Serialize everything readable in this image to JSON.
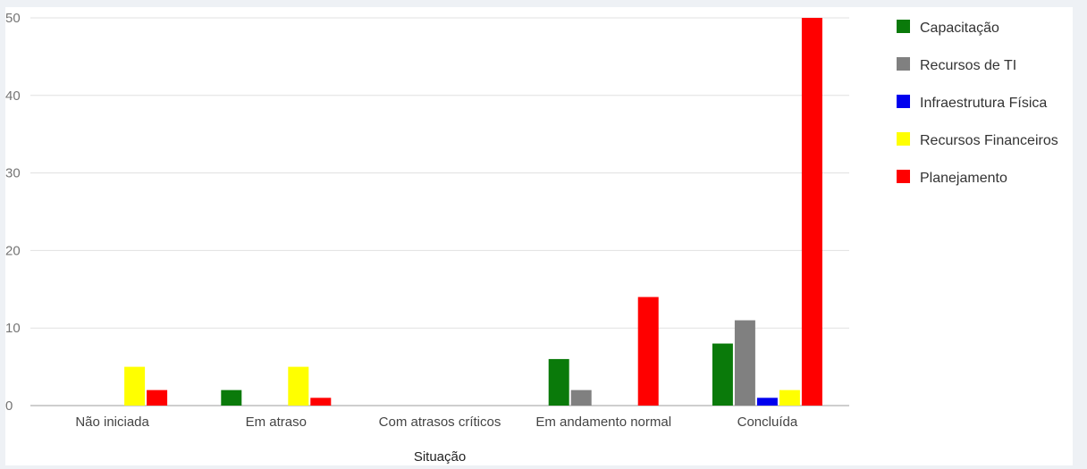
{
  "chart_data": {
    "type": "bar",
    "title": "",
    "xlabel": "Situação",
    "ylabel": "",
    "ylim": [
      0,
      50
    ],
    "yticks": [
      0,
      10,
      20,
      30,
      40,
      50
    ],
    "grid": true,
    "legend_position": "right",
    "categories": [
      "Não iniciada",
      "Em atraso",
      "Com atrasos críticos",
      "Em andamento normal",
      "Concluída"
    ],
    "series": [
      {
        "name": "Capacitação",
        "color": "#0a7a0a",
        "values": [
          0,
          2,
          0,
          6,
          8
        ]
      },
      {
        "name": "Recursos de TI",
        "color": "#808080",
        "values": [
          0,
          0,
          0,
          2,
          11
        ]
      },
      {
        "name": "Infraestrutura Física",
        "color": "#0000ee",
        "values": [
          0,
          0,
          0,
          0,
          1
        ]
      },
      {
        "name": "Recursos Financeiros",
        "color": "#ffff00",
        "values": [
          5,
          5,
          0,
          0,
          2
        ]
      },
      {
        "name": "Planejamento",
        "color": "#ff0000",
        "values": [
          2,
          1,
          0,
          14,
          50
        ]
      }
    ]
  }
}
